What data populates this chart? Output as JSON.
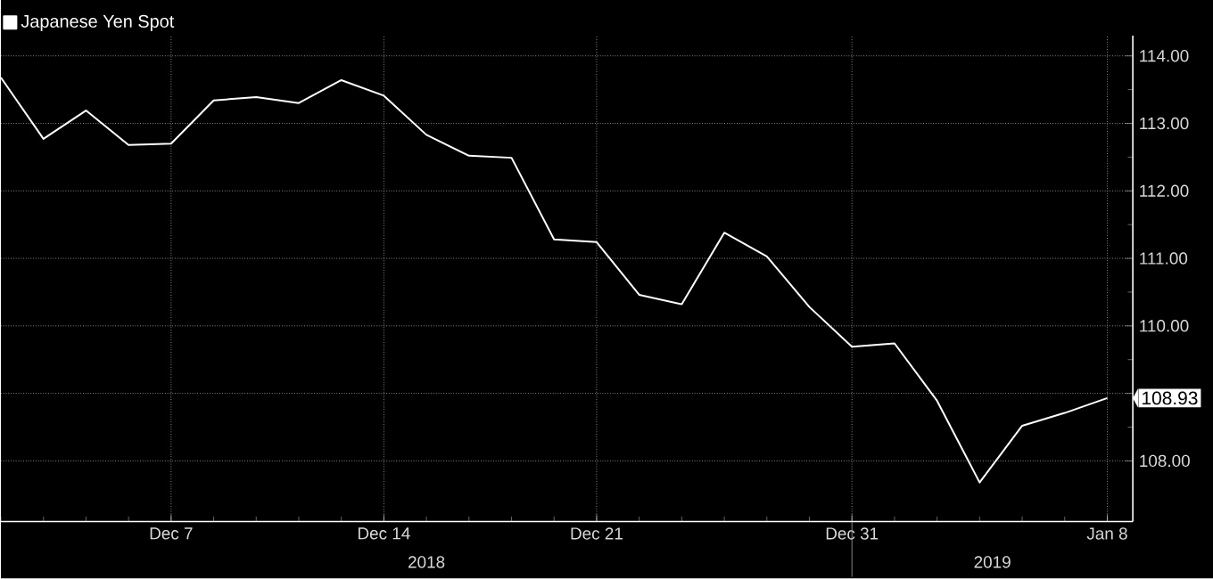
{
  "chart_data": {
    "type": "line",
    "categories": [
      null,
      null,
      null,
      null,
      "Dec 7",
      null,
      null,
      null,
      null,
      "Dec 14",
      null,
      null,
      null,
      null,
      "Dec 21",
      null,
      null,
      null,
      null,
      null,
      "Dec 31",
      null,
      null,
      null,
      null,
      null,
      "Jan 8"
    ],
    "series": [
      {
        "name": "Japanese Yen Spot",
        "color": "#ffffff",
        "values": [
          113.68,
          112.77,
          113.19,
          112.68,
          112.7,
          113.34,
          113.39,
          113.3,
          113.64,
          113.41,
          112.83,
          112.52,
          112.49,
          111.28,
          111.24,
          110.46,
          110.32,
          111.38,
          111.03,
          110.28,
          109.69,
          109.74,
          108.89,
          107.68,
          108.52,
          108.71,
          108.93
        ],
        "value_labels": [
          null,
          null,
          null,
          null,
          null,
          null,
          null,
          null,
          null,
          null,
          null,
          null,
          null,
          null,
          null,
          null,
          null,
          null,
          null,
          null,
          null,
          null,
          null,
          null,
          null,
          null,
          "108.93"
        ]
      }
    ],
    "ylim": [
      107.1,
      114.3
    ],
    "yticks": [
      {
        "value": 108,
        "label": "108.00"
      },
      {
        "value": 109,
        "label": null
      },
      {
        "value": 110,
        "label": "110.00"
      },
      {
        "value": 111,
        "label": "111.00"
      },
      {
        "value": 112,
        "label": "112.00"
      },
      {
        "value": 113,
        "label": "113.00"
      },
      {
        "value": 114,
        "label": "114.00"
      }
    ],
    "annotations": [
      "2018",
      "2019"
    ],
    "grid": true,
    "legend": "top left",
    "marker": "none",
    "line_style": "solid"
  }
}
